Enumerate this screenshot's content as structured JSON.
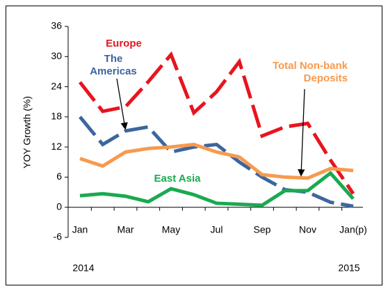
{
  "chart_data": {
    "type": "line",
    "y_label": "YOY Growth (%)",
    "categories": [
      "Jan",
      null,
      "Mar",
      null,
      "May",
      null,
      "Jul",
      null,
      "Sep",
      null,
      "Nov",
      null,
      "Jan(p)"
    ],
    "years": [
      "2014",
      "2015"
    ],
    "ylim": [
      -6,
      36
    ],
    "yticks": [
      -6,
      0,
      6,
      12,
      18,
      24,
      30,
      36
    ],
    "series": [
      {
        "name": "Europe",
        "color": "#e8141f",
        "dashed": true,
        "values": [
          24.9,
          19.1,
          20,
          25,
          30.4,
          18.8,
          23,
          29,
          14.2,
          16,
          16.7,
          9.4,
          2.7
        ]
      },
      {
        "name": "The Americas",
        "color": "#3b66a0",
        "dashed": true,
        "values": [
          18,
          12.5,
          15.2,
          16,
          11,
          12,
          12.5,
          9,
          6,
          3.5,
          3,
          1,
          0.2
        ]
      },
      {
        "name": "Total Non-bank Deposits",
        "color": "#f79a4f",
        "dashed": false,
        "values": [
          9.7,
          8.2,
          11,
          11.7,
          12,
          12.5,
          11,
          10,
          6.5,
          6,
          5.8,
          7.7,
          7.3
        ]
      },
      {
        "name": "East Asia",
        "color": "#19aa4f",
        "dashed": false,
        "values": [
          2.3,
          2.7,
          2.2,
          1.1,
          3.7,
          2.5,
          0.8,
          0.6,
          0.4,
          3.3,
          3.3,
          6.8,
          1.7
        ]
      }
    ]
  }
}
